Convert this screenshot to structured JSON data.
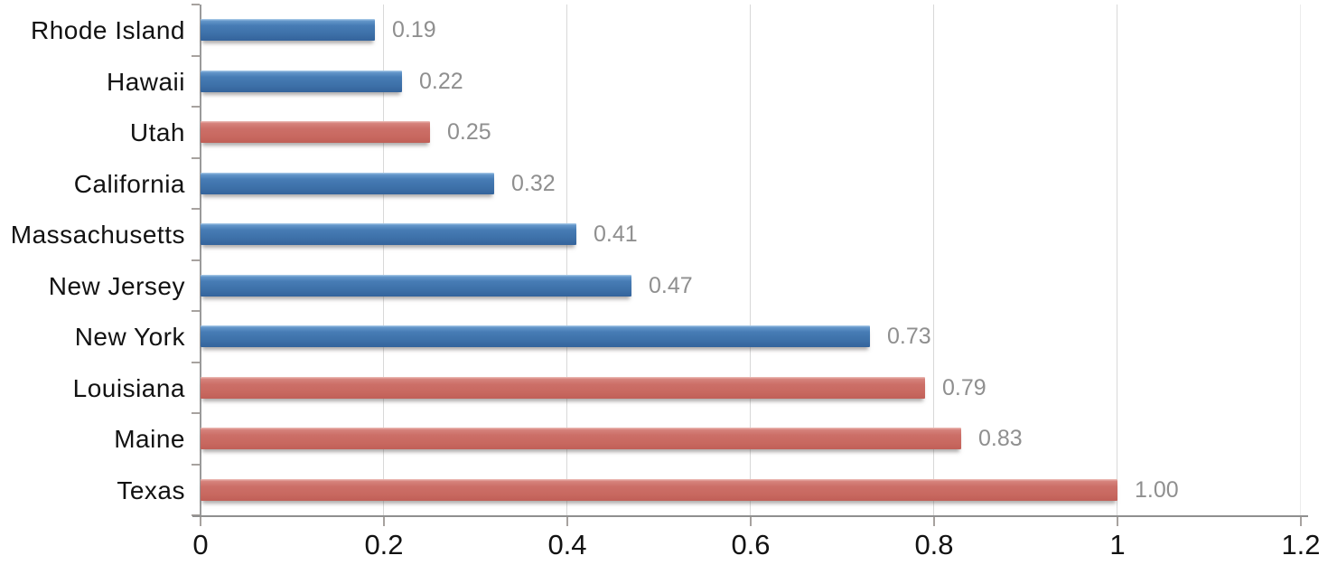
{
  "chart_data": {
    "type": "bar",
    "orientation": "horizontal",
    "title": "",
    "xlabel": "",
    "ylabel": "",
    "categories": [
      "Rhode Island",
      "Hawaii",
      "Utah",
      "California",
      "Massachusetts",
      "New Jersey",
      "New York",
      "Louisiana",
      "Maine",
      "Texas"
    ],
    "values": [
      0.19,
      0.22,
      0.25,
      0.32,
      0.41,
      0.47,
      0.73,
      0.79,
      0.83,
      1.0
    ],
    "value_labels": [
      "0.19",
      "0.22",
      "0.25",
      "0.32",
      "0.41",
      "0.47",
      "0.73",
      "0.79",
      "0.83",
      "1.00"
    ],
    "bar_color_keys": [
      "blue",
      "blue",
      "red",
      "blue",
      "blue",
      "blue",
      "blue",
      "red",
      "red",
      "red"
    ],
    "colors": {
      "blue": "#3d70a8",
      "red": "#c8685f",
      "value_label": "#8f8f8f",
      "axis": "#8f8f8f",
      "gridline": "#d8d8d8",
      "category_text": "#121212"
    },
    "x_axis": {
      "min": 0,
      "max": 1.2,
      "tick_interval": 0.2,
      "tick_values": [
        0,
        0.2,
        0.4,
        0.6,
        0.8,
        1.0,
        1.2
      ],
      "tick_labels": [
        "0",
        "0.2",
        "0.4",
        "0.6",
        "0.8",
        "1",
        "1.2"
      ]
    },
    "grid": "vertical",
    "legend": "none"
  }
}
